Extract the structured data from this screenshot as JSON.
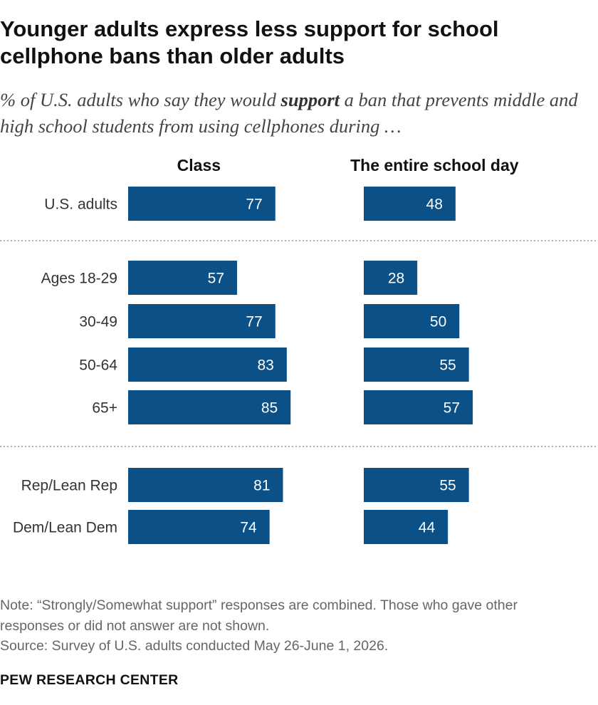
{
  "title": "Younger adults express less support for school cellphone bans than older adults",
  "subtitle": {
    "before": "% of U.S. adults who say they would ",
    "emphasis": "support",
    "after": " a ban that prevents middle and high school students from using cellphones during …"
  },
  "chart_data": {
    "type": "bar",
    "orientation": "horizontal",
    "title": "",
    "xlim": [
      0,
      100
    ],
    "grid": false,
    "categories": [
      "U.S. adults",
      "Ages 18-29",
      "30-49",
      "50-64",
      "65+",
      "Rep/Lean Rep",
      "Dem/Lean Dem"
    ],
    "groups": [
      [
        0
      ],
      [
        1,
        2,
        3,
        4
      ],
      [
        5,
        6
      ]
    ],
    "series": [
      {
        "name": "Class",
        "values": [
          77,
          57,
          77,
          83,
          85,
          81,
          74
        ]
      },
      {
        "name": "The entire school day",
        "values": [
          48,
          28,
          50,
          55,
          57,
          55,
          44
        ]
      }
    ],
    "bar_color": "#0b5087",
    "divider_color": "#999999"
  },
  "footer": {
    "note": "Note: “Strongly/Somewhat support” responses are combined. Those who gave other responses or did not answer are not shown.",
    "source": "Source: Survey of U.S. adults conducted May 26-June 1, 2026.",
    "brand": "PEW RESEARCH CENTER"
  }
}
